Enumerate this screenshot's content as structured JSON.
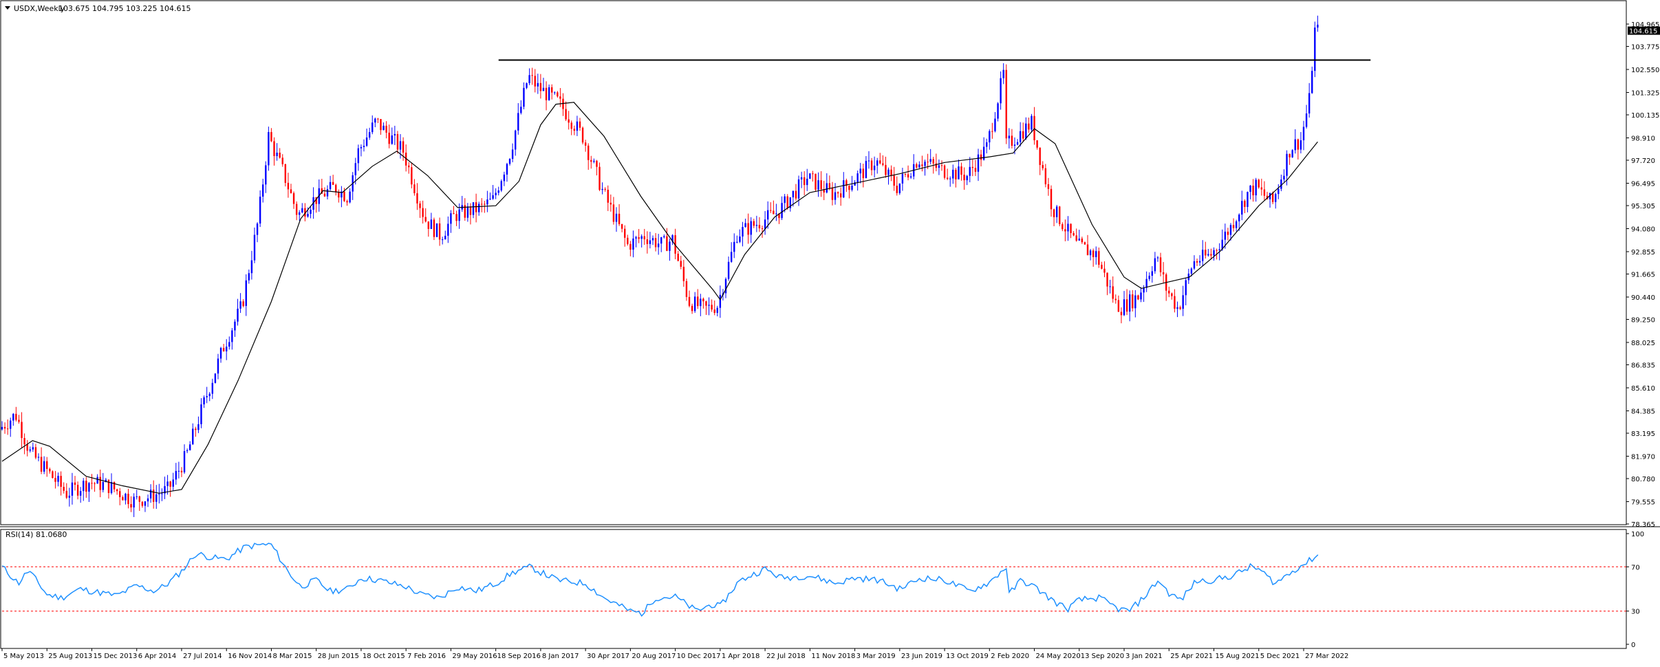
{
  "chart_data": [
    {
      "type": "candlestick",
      "title": "USDX,Weekly",
      "ohlc_label": "103.675 104.795 103.225 104.615",
      "symbol": "USDX",
      "timeframe": "Weekly",
      "last_price": "104.615",
      "bull_color": "#0000ff",
      "bear_color": "#ff0000",
      "ylim": [
        78.365,
        104.965
      ],
      "y_ticks": [
        "104.965",
        "103.775",
        "102.550",
        "101.325",
        "100.135",
        "98.910",
        "97.720",
        "96.495",
        "95.305",
        "94.080",
        "92.855",
        "91.665",
        "90.440",
        "89.250",
        "88.025",
        "86.835",
        "85.610",
        "84.385",
        "83.195",
        "81.970",
        "80.780",
        "79.555",
        "78.365"
      ],
      "x_ticks": [
        "5 May 2013",
        "25 Aug 2013",
        "15 Dec 2013",
        "6 Apr 2014",
        "27 Jul 2014",
        "16 Nov 2014",
        "8 Mar 2015",
        "28 Jun 2015",
        "18 Oct 2015",
        "7 Feb 2016",
        "29 May 2016",
        "18 Sep 2016",
        "8 Jan 2017",
        "30 Apr 2017",
        "20 Aug 2017",
        "10 Dec 2017",
        "1 Apr 2018",
        "22 Jul 2018",
        "11 Nov 2018",
        "3 Mar 2019",
        "23 Jun 2019",
        "13 Oct 2019",
        "2 Feb 2020",
        "24 May 2020",
        "13 Sep 2020",
        "3 Jan 2021",
        "25 Apr 2021",
        "15 Aug 2021",
        "5 Dec 2021",
        "27 Mar 2022"
      ],
      "x_range": [
        "5 May 2013",
        "27 Mar 2022"
      ],
      "price_path": [
        [
          "2013-05-05",
          83.4
        ],
        [
          "2013-06-15",
          84.2
        ],
        [
          "2013-07-20",
          82.2
        ],
        [
          "2013-09-01",
          81.2
        ],
        [
          "2013-10-20",
          80.0
        ],
        [
          "2013-12-15",
          80.6
        ],
        [
          "2014-02-01",
          80.4
        ],
        [
          "2014-04-06",
          79.6
        ],
        [
          "2014-05-15",
          79.8
        ],
        [
          "2014-07-01",
          80.2
        ],
        [
          "2014-08-15",
          82.0
        ],
        [
          "2014-10-01",
          85.0
        ],
        [
          "2014-11-16",
          87.8
        ],
        [
          "2015-01-01",
          90.0
        ],
        [
          "2015-02-10",
          94.5
        ],
        [
          "2015-03-08",
          99.0
        ],
        [
          "2015-04-15",
          97.0
        ],
        [
          "2015-05-20",
          94.8
        ],
        [
          "2015-06-28",
          95.6
        ],
        [
          "2015-08-20",
          96.3
        ],
        [
          "2015-09-20",
          95.8
        ],
        [
          "2015-10-18",
          98.2
        ],
        [
          "2015-12-01",
          99.8
        ],
        [
          "2016-02-07",
          98.2
        ],
        [
          "2016-04-01",
          94.6
        ],
        [
          "2016-05-10",
          93.7
        ],
        [
          "2016-06-15",
          94.8
        ],
        [
          "2016-08-20",
          95.2
        ],
        [
          "2016-09-18",
          95.6
        ],
        [
          "2016-11-01",
          98.2
        ],
        [
          "2016-12-15",
          102.2
        ],
        [
          "2017-01-08",
          101.6
        ],
        [
          "2017-03-01",
          100.8
        ],
        [
          "2017-04-30",
          99.0
        ],
        [
          "2017-06-20",
          96.0
        ],
        [
          "2017-08-20",
          93.2
        ],
        [
          "2017-10-01",
          93.7
        ],
        [
          "2017-11-15",
          93.2
        ],
        [
          "2017-12-10",
          93.5
        ],
        [
          "2018-01-20",
          90.2
        ],
        [
          "2018-03-01",
          89.8
        ],
        [
          "2018-04-01",
          90.0
        ],
        [
          "2018-05-20",
          93.8
        ],
        [
          "2018-07-22",
          94.5
        ],
        [
          "2018-09-01",
          95.0
        ],
        [
          "2018-11-11",
          96.8
        ],
        [
          "2019-01-15",
          95.9
        ],
        [
          "2019-03-03",
          96.6
        ],
        [
          "2019-05-01",
          97.7
        ],
        [
          "2019-06-23",
          96.3
        ],
        [
          "2019-08-15",
          97.8
        ],
        [
          "2019-10-13",
          97.2
        ],
        [
          "2019-12-15",
          96.9
        ],
        [
          "2020-02-02",
          98.4
        ],
        [
          "2020-03-15",
          102.3
        ],
        [
          "2020-03-22",
          98.5
        ],
        [
          "2020-05-24",
          99.7
        ],
        [
          "2020-07-15",
          95.2
        ],
        [
          "2020-09-13",
          93.2
        ],
        [
          "2020-11-01",
          92.7
        ],
        [
          "2020-12-20",
          90.1
        ],
        [
          "2021-01-03",
          89.9
        ],
        [
          "2021-02-15",
          90.5
        ],
        [
          "2021-03-30",
          92.6
        ],
        [
          "2021-04-25",
          90.9
        ],
        [
          "2021-05-25",
          89.8
        ],
        [
          "2021-07-01",
          92.3
        ],
        [
          "2021-08-15",
          92.7
        ],
        [
          "2021-10-01",
          94.1
        ],
        [
          "2021-11-15",
          96.0
        ],
        [
          "2021-12-05",
          96.3
        ],
        [
          "2022-01-15",
          95.4
        ],
        [
          "2022-03-01",
          98.4
        ],
        [
          "2022-03-27",
          98.8
        ],
        [
          "2022-04-17",
          100.9
        ],
        [
          "2022-05-01",
          104.6
        ]
      ],
      "ma_line": [
        [
          "2013-05-05",
          81.7
        ],
        [
          "2013-07-20",
          82.8
        ],
        [
          "2013-09-01",
          82.5
        ],
        [
          "2013-12-01",
          80.9
        ],
        [
          "2014-03-01",
          80.4
        ],
        [
          "2014-06-01",
          80.0
        ],
        [
          "2014-07-27",
          80.2
        ],
        [
          "2014-10-01",
          82.6
        ],
        [
          "2014-12-15",
          86.0
        ],
        [
          "2015-03-08",
          90.2
        ],
        [
          "2015-05-20",
          94.6
        ],
        [
          "2015-07-15",
          96.1
        ],
        [
          "2015-09-01",
          96.0
        ],
        [
          "2015-11-15",
          97.4
        ],
        [
          "2016-01-15",
          98.2
        ],
        [
          "2016-04-01",
          96.9
        ],
        [
          "2016-06-15",
          95.2
        ],
        [
          "2016-09-18",
          95.3
        ],
        [
          "2016-11-15",
          96.6
        ],
        [
          "2017-01-08",
          99.6
        ],
        [
          "2017-02-15",
          100.7
        ],
        [
          "2017-04-01",
          100.8
        ],
        [
          "2017-06-15",
          99.0
        ],
        [
          "2017-09-15",
          95.8
        ],
        [
          "2017-12-10",
          93.2
        ],
        [
          "2018-03-15",
          90.8
        ],
        [
          "2018-04-01",
          90.3
        ],
        [
          "2018-06-01",
          92.7
        ],
        [
          "2018-08-15",
          94.7
        ],
        [
          "2018-11-11",
          96.0
        ],
        [
          "2019-03-03",
          96.5
        ],
        [
          "2019-06-23",
          97.0
        ],
        [
          "2019-10-13",
          97.6
        ],
        [
          "2020-02-02",
          97.9
        ],
        [
          "2020-04-01",
          98.1
        ],
        [
          "2020-05-24",
          99.4
        ],
        [
          "2020-07-15",
          98.6
        ],
        [
          "2020-10-15",
          94.3
        ],
        [
          "2021-01-03",
          91.5
        ],
        [
          "2021-02-15",
          90.9
        ],
        [
          "2021-04-15",
          91.2
        ],
        [
          "2021-06-15",
          91.5
        ],
        [
          "2021-09-01",
          92.9
        ],
        [
          "2021-12-05",
          95.3
        ],
        [
          "2022-02-15",
          96.7
        ],
        [
          "2022-05-01",
          98.7
        ]
      ],
      "resistance_line": {
        "value": 103.05,
        "from": "2016-09-25",
        "to": "2022-09-10"
      }
    },
    {
      "type": "line",
      "title": "RSI(14) 81.0680",
      "name": "RSI(14)",
      "ylim": [
        0,
        100
      ],
      "y_ticks": [
        "100",
        "70",
        "30",
        "0"
      ],
      "levels": [
        70,
        30
      ],
      "level_color": "#ff0000",
      "line_color": "#1e90ff",
      "x_range": [
        "5 May 2013",
        "27 Mar 2022"
      ],
      "points": [
        [
          "2013-05-05",
          70
        ],
        [
          "2013-06-15",
          55
        ],
        [
          "2013-07-10",
          67
        ],
        [
          "2013-08-25",
          45
        ],
        [
          "2013-10-01",
          42
        ],
        [
          "2013-11-15",
          50
        ],
        [
          "2013-12-15",
          48
        ],
        [
          "2014-02-15",
          44
        ],
        [
          "2014-04-06",
          53
        ],
        [
          "2014-05-20",
          48
        ],
        [
          "2014-06-20",
          54
        ],
        [
          "2014-07-27",
          66
        ],
        [
          "2014-09-01",
          82
        ],
        [
          "2014-10-15",
          78
        ],
        [
          "2014-11-16",
          77
        ],
        [
          "2015-01-01",
          88
        ],
        [
          "2015-02-15",
          90
        ],
        [
          "2015-03-08",
          90
        ],
        [
          "2015-04-20",
          65
        ],
        [
          "2015-05-20",
          52
        ],
        [
          "2015-06-28",
          58
        ],
        [
          "2015-08-01",
          48
        ],
        [
          "2015-09-15",
          50
        ],
        [
          "2015-10-18",
          60
        ],
        [
          "2015-12-01",
          58
        ],
        [
          "2016-02-07",
          52
        ],
        [
          "2016-03-15",
          45
        ],
        [
          "2016-05-01",
          42
        ],
        [
          "2016-06-15",
          52
        ],
        [
          "2016-08-01",
          48
        ],
        [
          "2016-09-18",
          55
        ],
        [
          "2016-11-01",
          65
        ],
        [
          "2016-12-15",
          70
        ],
        [
          "2017-01-08",
          65
        ],
        [
          "2017-02-20",
          58
        ],
        [
          "2017-04-30",
          55
        ],
        [
          "2017-06-15",
          42
        ],
        [
          "2017-08-20",
          30
        ],
        [
          "2017-09-20",
          28
        ],
        [
          "2017-10-20",
          42
        ],
        [
          "2017-12-10",
          43
        ],
        [
          "2018-02-01",
          30
        ],
        [
          "2018-03-10",
          36
        ],
        [
          "2018-04-01",
          34
        ],
        [
          "2018-05-15",
          56
        ],
        [
          "2018-06-15",
          62
        ],
        [
          "2018-07-22",
          68
        ],
        [
          "2018-09-01",
          60
        ],
        [
          "2018-11-11",
          62
        ],
        [
          "2019-01-15",
          55
        ],
        [
          "2019-03-03",
          60
        ],
        [
          "2019-05-01",
          58
        ],
        [
          "2019-06-23",
          50
        ],
        [
          "2019-08-15",
          60
        ],
        [
          "2019-10-13",
          58
        ],
        [
          "2019-12-15",
          48
        ],
        [
          "2020-02-02",
          56
        ],
        [
          "2020-03-15",
          70
        ],
        [
          "2020-03-22",
          45
        ],
        [
          "2020-04-20",
          58
        ],
        [
          "2020-05-24",
          52
        ],
        [
          "2020-07-15",
          38
        ],
        [
          "2020-08-15",
          32
        ],
        [
          "2020-09-13",
          40
        ],
        [
          "2020-11-01",
          42
        ],
        [
          "2020-12-20",
          32
        ],
        [
          "2021-01-15",
          30
        ],
        [
          "2021-02-15",
          40
        ],
        [
          "2021-03-30",
          58
        ],
        [
          "2021-04-25",
          46
        ],
        [
          "2021-05-25",
          40
        ],
        [
          "2021-07-01",
          57
        ],
        [
          "2021-08-15",
          58
        ],
        [
          "2021-10-01",
          62
        ],
        [
          "2021-11-15",
          70
        ],
        [
          "2021-12-05",
          68
        ],
        [
          "2022-01-15",
          55
        ],
        [
          "2022-02-15",
          63
        ],
        [
          "2022-03-15",
          70
        ],
        [
          "2022-04-05",
          74
        ],
        [
          "2022-05-01",
          81
        ]
      ]
    }
  ]
}
